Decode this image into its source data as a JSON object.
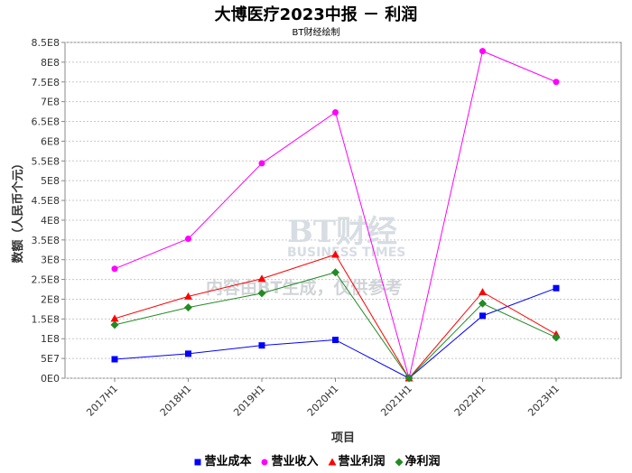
{
  "chart_data": {
    "type": "line",
    "title": "大博医疗2023中报 － 利润",
    "subtitle": "BT财经绘制",
    "xlabel": "项目",
    "ylabel": "数额（人民币个元）",
    "categories": [
      "2017H1",
      "2018H1",
      "2019H1",
      "2020H1",
      "2021H1",
      "2022H1",
      "2023H1"
    ],
    "ylim": [
      0,
      850000000
    ],
    "yticks": [
      "0E0",
      "5E7",
      "1E8",
      "1.5E8",
      "2E8",
      "2.5E8",
      "3E8",
      "3.5E8",
      "4E8",
      "4.5E8",
      "5E8",
      "5.5E8",
      "6E8",
      "6.5E8",
      "7E8",
      "7.5E8",
      "8E8",
      "8.5E8"
    ],
    "grid": true,
    "legend_position": "bottom",
    "series": [
      {
        "name": "营业成本",
        "color": "#0000ff",
        "marker": "square",
        "values": [
          48000000,
          62000000,
          83000000,
          97000000,
          0,
          158000000,
          228000000
        ]
      },
      {
        "name": "营业收入",
        "color": "#ff00ff",
        "marker": "circle",
        "values": [
          277000000,
          353000000,
          544000000,
          673000000,
          0,
          828000000,
          750000000
        ]
      },
      {
        "name": "营业利润",
        "color": "#ff0000",
        "marker": "triangle",
        "values": [
          151000000,
          207000000,
          252000000,
          313000000,
          0,
          218000000,
          111000000
        ]
      },
      {
        "name": "净利润",
        "color": "#228b22",
        "marker": "diamond",
        "values": [
          135000000,
          179000000,
          215000000,
          268000000,
          0,
          189000000,
          103000000
        ]
      }
    ]
  },
  "watermark": {
    "brand": "BT财经",
    "brand_en": "BUSINESS TIMES",
    "notice": "内容由BT生成，仅供参考"
  }
}
